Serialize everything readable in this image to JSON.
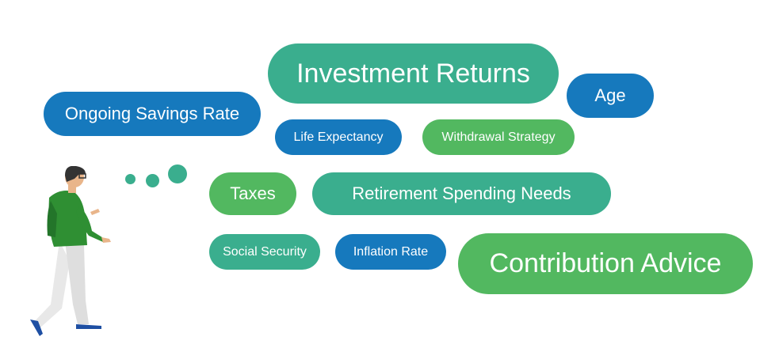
{
  "colors": {
    "teal": "#3aae8e",
    "blue": "#1679bd",
    "green": "#52b860"
  },
  "bubbles": {
    "investment_returns": "Investment Returns",
    "age": "Age",
    "ongoing_savings_rate": "Ongoing Savings Rate",
    "life_expectancy": "Life Expectancy",
    "withdrawal_strategy": "Withdrawal Strategy",
    "taxes": "Taxes",
    "retirement_spending_needs": "Retirement Spending Needs",
    "social_security": "Social Security",
    "inflation_rate": "Inflation Rate",
    "contribution_advice": "Contribution Advice"
  },
  "illustration": {
    "figure": "thinking-person-illustration",
    "thought_dots": "thought-bubble-dots"
  }
}
